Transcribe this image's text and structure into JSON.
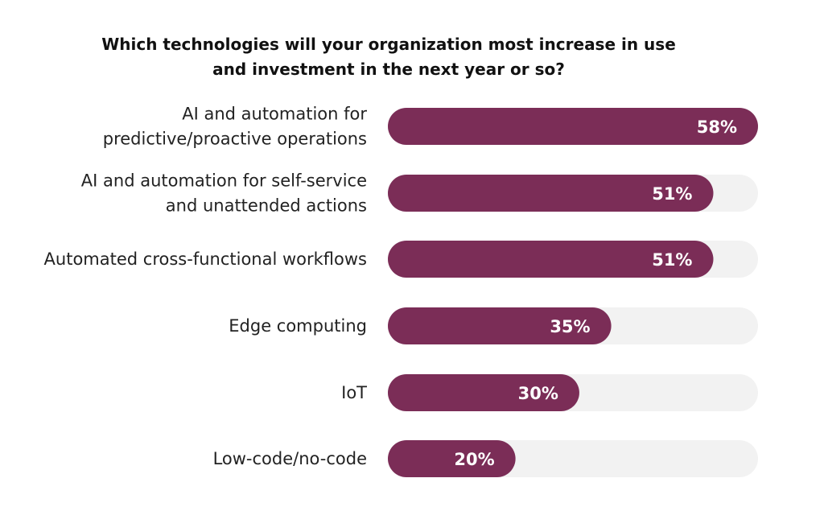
{
  "chart_data": {
    "type": "bar",
    "orientation": "horizontal",
    "title_lines": [
      "Which technologies will your organization most increase in use",
      "and investment in the next year or so?"
    ],
    "categories": [
      [
        "AI and automation for",
        "predictive/proactive operations"
      ],
      [
        "AI and automation for self-service",
        "and unattended actions"
      ],
      [
        "Automated cross-functional workflows"
      ],
      [
        "Edge computing"
      ],
      [
        "IoT"
      ],
      [
        "Low-code/no-code"
      ]
    ],
    "values": [
      58,
      51,
      51,
      35,
      30,
      20
    ],
    "value_labels": [
      "58%",
      "51%",
      "51%",
      "35%",
      "30%",
      "20%"
    ],
    "xlim": [
      0,
      58
    ],
    "grid": false,
    "legend": "none",
    "colors": {
      "bar": "#7b2d57",
      "track": "#f2f2f2",
      "label": "#222222",
      "value_text": "#ffffff"
    }
  }
}
